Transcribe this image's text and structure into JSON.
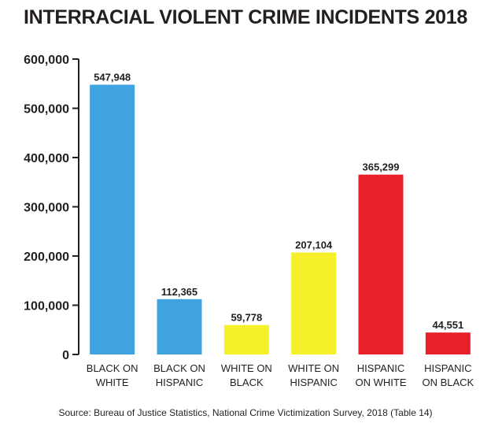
{
  "chart_data": {
    "type": "bar",
    "title": "INTERRACIAL VIOLENT CRIME INCIDENTS 2018",
    "source": "Source: Bureau of Justice Statistics, National Crime Victimization Survey, 2018 (Table 14)",
    "categories": [
      [
        "BLACK ON",
        "WHITE"
      ],
      [
        "BLACK ON",
        "HISPANIC"
      ],
      [
        "WHITE ON",
        "BLACK"
      ],
      [
        "WHITE ON",
        "HISPANIC"
      ],
      [
        "HISPANIC",
        "ON WHITE"
      ],
      [
        "HISPANIC",
        "ON BLACK"
      ]
    ],
    "values": [
      547948,
      112365,
      59778,
      207104,
      365299,
      44551
    ],
    "value_labels": [
      "547,948",
      "112,365",
      "59,778",
      "207,104",
      "365,299",
      "44,551"
    ],
    "bar_colors": [
      "#3fa3e0",
      "#3fa3e0",
      "#f5f02a",
      "#f5f02a",
      "#e8202a",
      "#e8202a"
    ],
    "ylim": [
      0,
      600000
    ],
    "yticks": [
      0,
      100000,
      200000,
      300000,
      400000,
      500000,
      600000
    ],
    "ytick_labels": [
      "0",
      "100,000",
      "200,000",
      "300,000",
      "400,000",
      "500,000",
      "600,000"
    ],
    "grid": false,
    "xlabel": "",
    "ylabel": ""
  }
}
